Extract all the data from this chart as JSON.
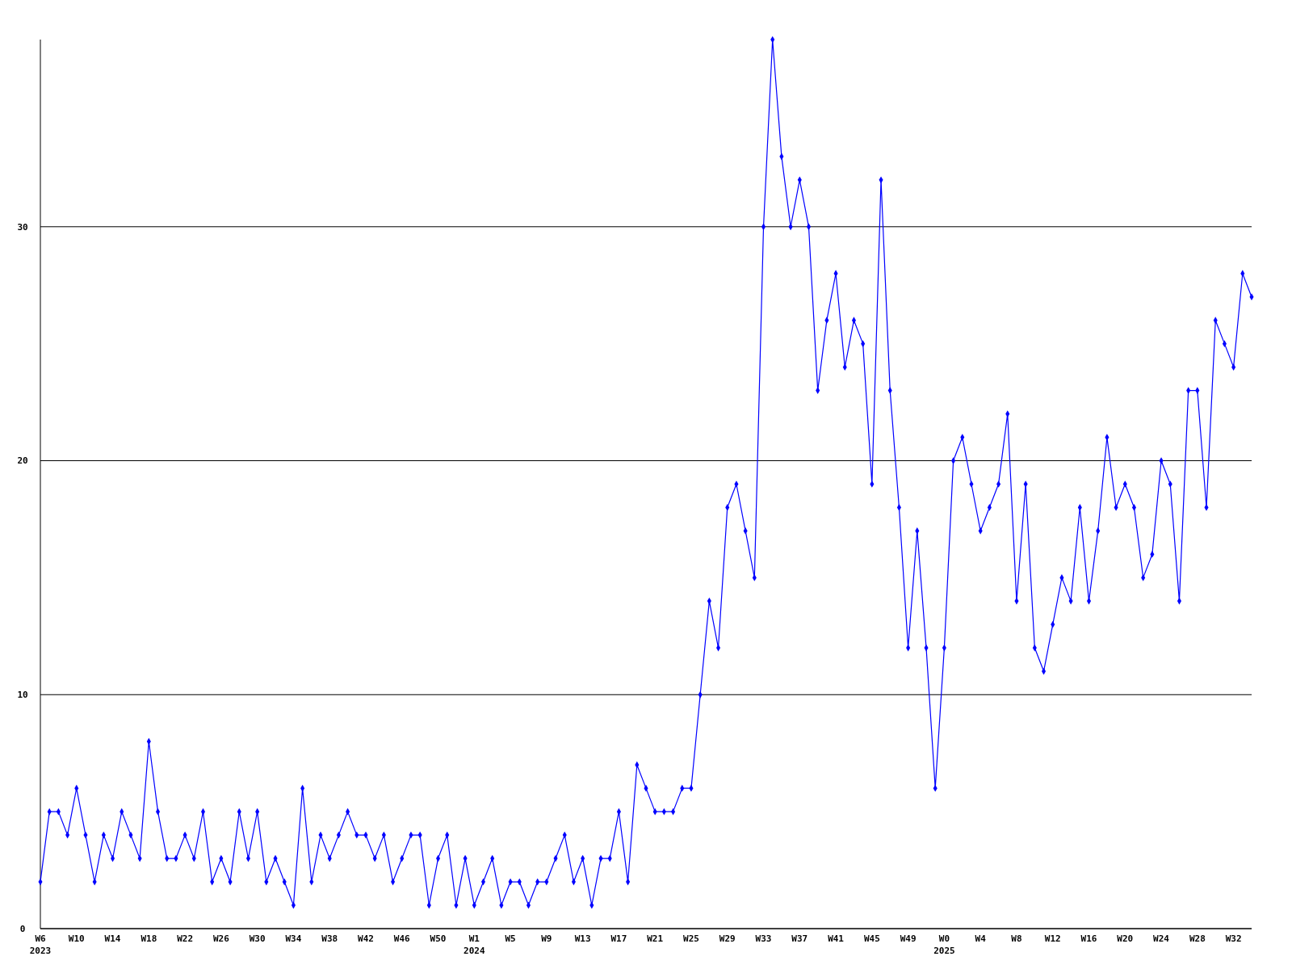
{
  "chart_data": {
    "type": "line",
    "categories": [
      "W6\n2023",
      null,
      null,
      null,
      "W10",
      null,
      null,
      null,
      "W14",
      null,
      null,
      null,
      "W18",
      null,
      null,
      null,
      "W22",
      null,
      null,
      null,
      "W26",
      null,
      null,
      null,
      "W30",
      null,
      null,
      null,
      "W34",
      null,
      null,
      null,
      "W38",
      null,
      null,
      null,
      "W42",
      null,
      null,
      null,
      "W46",
      null,
      null,
      null,
      "W50",
      null,
      null,
      null,
      "W1\n2024",
      null,
      null,
      null,
      "W5",
      null,
      null,
      null,
      "W9",
      null,
      null,
      null,
      "W13",
      null,
      null,
      null,
      "W17",
      null,
      null,
      null,
      "W21",
      null,
      null,
      null,
      "W25",
      null,
      null,
      null,
      "W29",
      null,
      null,
      null,
      "W33",
      null,
      null,
      null,
      "W37",
      null,
      null,
      null,
      "W41",
      null,
      null,
      null,
      "W45",
      null,
      null,
      null,
      "W49",
      null,
      null,
      null,
      "W0\n2025",
      null,
      null,
      null,
      "W4",
      null,
      null,
      null,
      "W8",
      null,
      null,
      null,
      "W12",
      null,
      null,
      null,
      "W16",
      null,
      null,
      null,
      "W20",
      null,
      null,
      null,
      "W24",
      null,
      null,
      null,
      "W28",
      null,
      null,
      null,
      "W32",
      null,
      null
    ],
    "series": [
      {
        "color": "#0000ff",
        "values": [
          2,
          5,
          5,
          4,
          6,
          4,
          2,
          4,
          3,
          5,
          4,
          3,
          8,
          5,
          3,
          3,
          4,
          3,
          5,
          2,
          3,
          2,
          5,
          3,
          5,
          2,
          3,
          2,
          1,
          6,
          2,
          4,
          3,
          4,
          5,
          4,
          4,
          3,
          4,
          2,
          3,
          4,
          4,
          1,
          3,
          4,
          1,
          3,
          1,
          2,
          3,
          1,
          2,
          2,
          1,
          2,
          2,
          3,
          4,
          2,
          3,
          1,
          3,
          3,
          5,
          2,
          7,
          6,
          5,
          5,
          5,
          6,
          6,
          10,
          14,
          12,
          18,
          19,
          17,
          15,
          30,
          38,
          33,
          30,
          32,
          30,
          23,
          26,
          28,
          24,
          26,
          25,
          19,
          32,
          23,
          18,
          12,
          17,
          12,
          6,
          12,
          20,
          21,
          19,
          17,
          18,
          19,
          22,
          14,
          19,
          12,
          11,
          13,
          15,
          14,
          18,
          14,
          17,
          21,
          18,
          19,
          18,
          15,
          16,
          20,
          19,
          14,
          23,
          23,
          18,
          26,
          25,
          24,
          28,
          27
        ]
      }
    ],
    "ylim": [
      0,
      38
    ],
    "yticks": [
      0,
      10,
      20,
      30
    ],
    "grid": "y",
    "marker": "diamond",
    "line_style": "solid"
  }
}
